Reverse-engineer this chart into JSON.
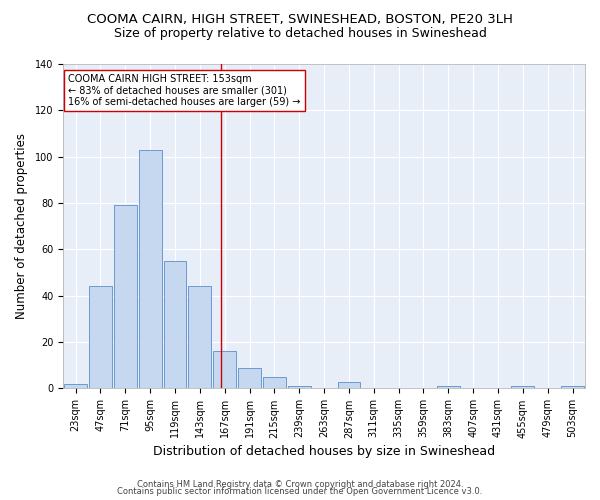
{
  "title_line1": "COOMA CAIRN, HIGH STREET, SWINESHEAD, BOSTON, PE20 3LH",
  "title_line2": "Size of property relative to detached houses in Swineshead",
  "xlabel": "Distribution of detached houses by size in Swineshead",
  "ylabel": "Number of detached properties",
  "categories": [
    "23sqm",
    "47sqm",
    "71sqm",
    "95sqm",
    "119sqm",
    "143sqm",
    "167sqm",
    "191sqm",
    "215sqm",
    "239sqm",
    "263sqm",
    "287sqm",
    "311sqm",
    "335sqm",
    "359sqm",
    "383sqm",
    "407sqm",
    "431sqm",
    "455sqm",
    "479sqm",
    "503sqm"
  ],
  "values": [
    2,
    44,
    79,
    103,
    55,
    44,
    16,
    9,
    5,
    1,
    0,
    3,
    0,
    0,
    0,
    1,
    0,
    0,
    1,
    0,
    1
  ],
  "bar_color": "#c5d8f0",
  "bar_edge_color": "#5b8fc9",
  "vline_color": "#cc0000",
  "vline_index": 5.85,
  "annotation_text": "COOMA CAIRN HIGH STREET: 153sqm\n← 83% of detached houses are smaller (301)\n16% of semi-detached houses are larger (59) →",
  "annotation_box_color": "white",
  "annotation_box_edge": "#cc0000",
  "ylim": [
    0,
    140
  ],
  "yticks": [
    0,
    20,
    40,
    60,
    80,
    100,
    120,
    140
  ],
  "background_color": "#e8eef8",
  "grid_color": "white",
  "footer_line1": "Contains HM Land Registry data © Crown copyright and database right 2024.",
  "footer_line2": "Contains public sector information licensed under the Open Government Licence v3.0.",
  "title_fontsize": 9.5,
  "subtitle_fontsize": 9,
  "xlabel_fontsize": 9,
  "ylabel_fontsize": 8.5,
  "tick_fontsize": 7,
  "annotation_fontsize": 7,
  "footer_fontsize": 6
}
